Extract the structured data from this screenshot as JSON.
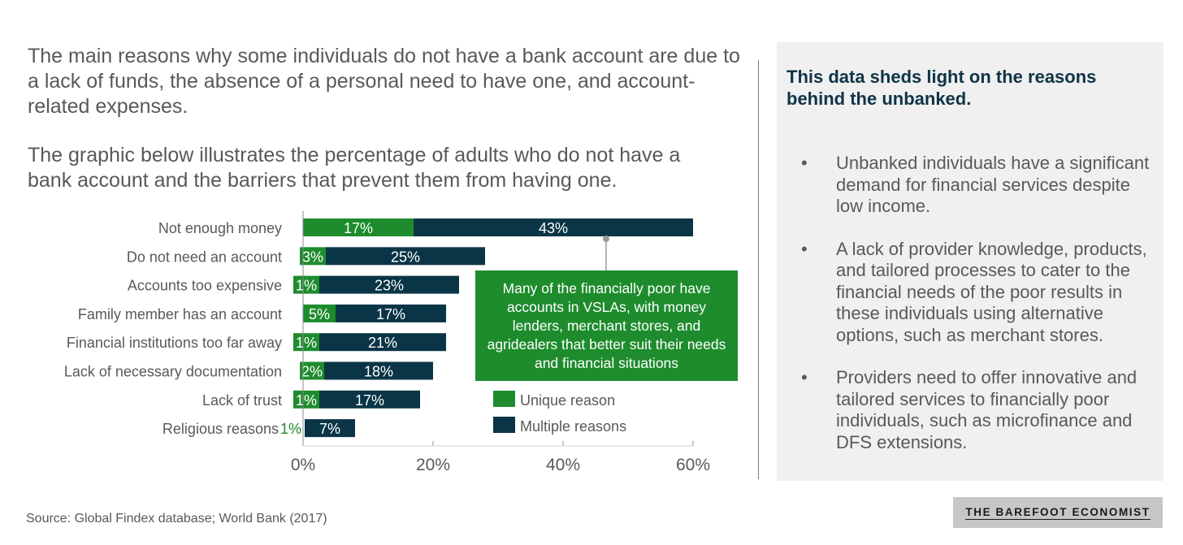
{
  "intro": {
    "paragraph1": "The main reasons why some individuals do not have a bank account are due to a lack of funds, the absence of a personal need to have one, and account-related expenses.",
    "paragraph2": "The graphic below illustrates the percentage of adults who do not have a bank account and the barriers that prevent them from having one."
  },
  "callout": "Many of the financially poor have accounts in VSLAs, with money lenders, merchant stores, and agridealers that better suit their needs and financial situations",
  "side_panel": {
    "title": "This data sheds light on the reasons behind the unbanked.",
    "bullets": [
      "Unbanked individuals have a significant demand for financial services despite low income.",
      "A lack of provider knowledge, products, and tailored processes to cater to the financial needs of the poor results in these individuals using alternative options, such as merchant stores.",
      "Providers need to offer innovative and tailored services to financially poor individuals, such as microfinance and DFS extensions."
    ]
  },
  "source": "Source: Global Findex database; World Bank (2017)",
  "brand": "THE BAREFOOT ECONOMIST",
  "colors": {
    "unique": "#1e8c2d",
    "multiple": "#0a3546",
    "callout": "#1e8c2d"
  },
  "chart_data": {
    "type": "bar",
    "orientation": "horizontal",
    "stacked": true,
    "categories": [
      "Not enough money",
      "Do not need an account",
      "Accounts too expensive",
      "Family member has an account",
      "Financial institutions too far away",
      "Lack of necessary documentation",
      "Lack of trust",
      "Religious reasons"
    ],
    "series": [
      {
        "name": "Unique reason",
        "values": [
          17,
          3,
          1,
          5,
          1,
          2,
          1,
          1
        ],
        "labels": [
          "17%",
          "3%",
          "1%",
          "5%",
          "1%",
          "2%",
          "1%",
          "1%"
        ]
      },
      {
        "name": "Multiple reasons",
        "values": [
          43,
          25,
          23,
          17,
          21,
          18,
          17,
          7
        ],
        "labels": [
          "43%",
          "25%",
          "23%",
          "17%",
          "21%",
          "18%",
          "17%",
          "7%"
        ]
      }
    ],
    "xlim": [
      0,
      60
    ],
    "xticks": [
      "0%",
      "20%",
      "40%",
      "60%"
    ],
    "grid": false,
    "legend_position": "bottom-right"
  }
}
